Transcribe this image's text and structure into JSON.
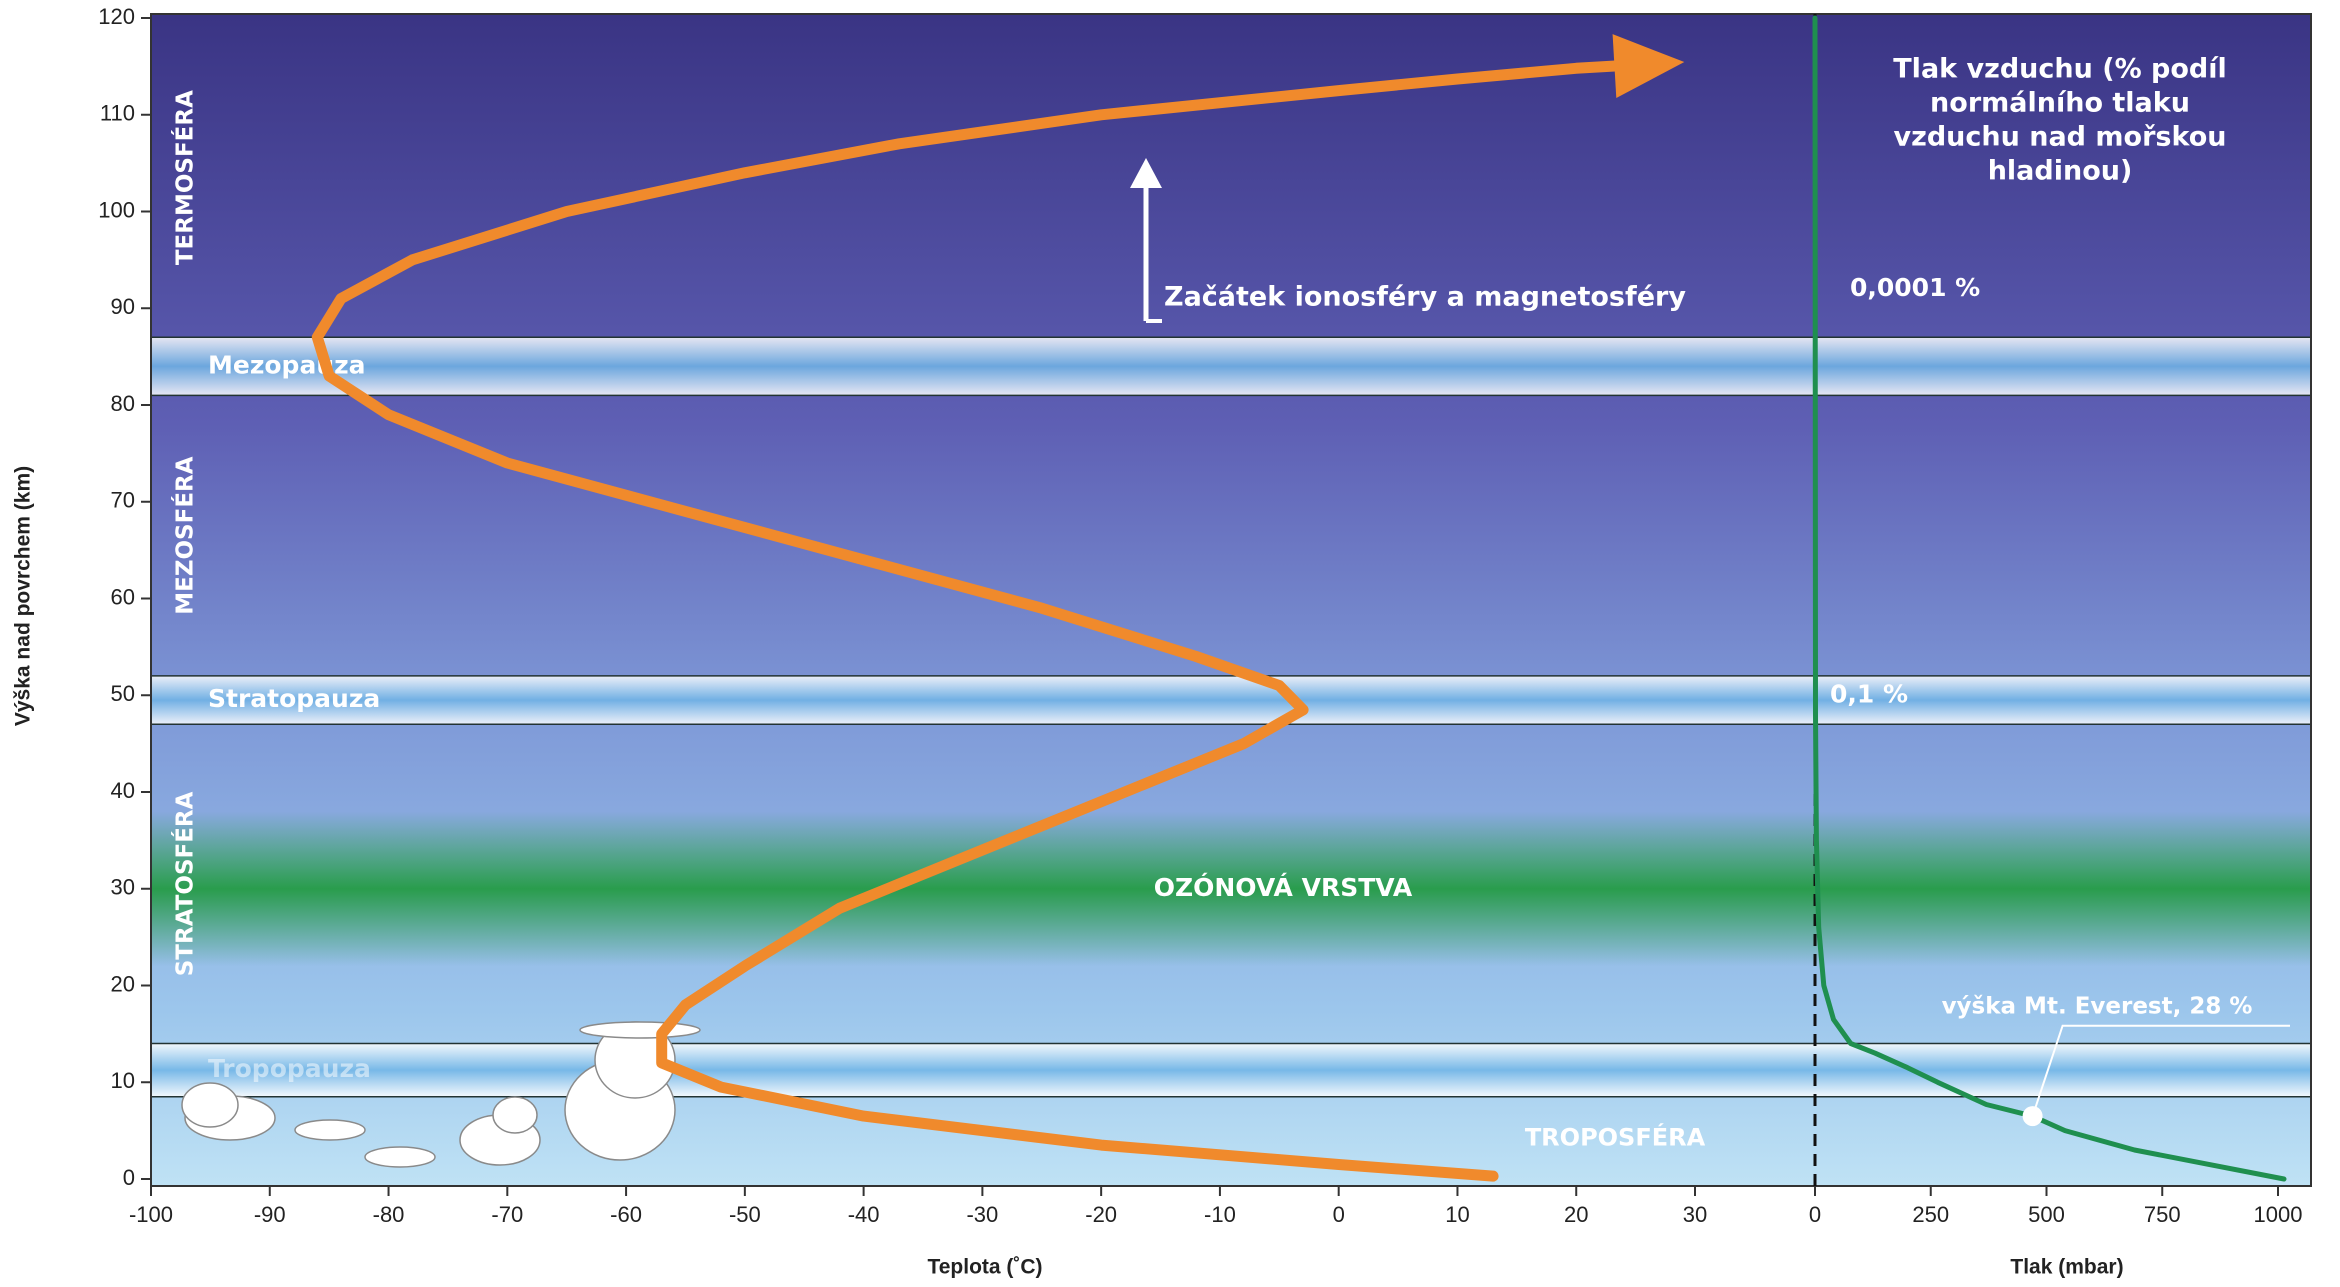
{
  "chart_data": {
    "type": "line",
    "ylabel": "Výška nad povrchem (km)",
    "xlabel": "Teplota (˚C)",
    "x2label": "Tlak (mbar)",
    "ylim": [
      0,
      120
    ],
    "yticks": [
      0,
      10,
      20,
      30,
      40,
      50,
      60,
      70,
      80,
      90,
      100,
      110,
      120
    ],
    "xlim": [
      -100,
      30
    ],
    "xticks": [
      -100,
      -90,
      -80,
      -70,
      -60,
      -50,
      -40,
      -30,
      -20,
      -10,
      0,
      10,
      20,
      30
    ],
    "x2lim": [
      0,
      1000
    ],
    "x2ticks": [
      0,
      250,
      500,
      750,
      1000
    ],
    "series": [
      {
        "color": "#f08a2c",
        "x": [
          13,
          0,
          -20,
          -40,
          -52,
          -57,
          -57,
          -55,
          -50,
          -42,
          -30,
          -18,
          -8,
          -3,
          -5,
          -12,
          -25,
          -40,
          -55,
          -70,
          -80,
          -85,
          -86,
          -84,
          -78,
          -65,
          -50,
          -37,
          -20,
          0,
          10,
          20,
          27
        ],
        "values": [
          0.3,
          1.5,
          3.5,
          6.5,
          9.5,
          12,
          15,
          18,
          22,
          28,
          34,
          40,
          45,
          48.5,
          51,
          54,
          59,
          64,
          69,
          74,
          79,
          83,
          87,
          91,
          95,
          100,
          104,
          107,
          110,
          112.5,
          113.7,
          114.8,
          115.3
        ]
      },
      {
        "color": "#1f8f4f",
        "axis": "x2",
        "x": [
          1013,
          690,
          540,
          470,
          370,
          265,
          200,
          130,
          77,
          40,
          19,
          8,
          3,
          1,
          0
        ],
        "values": [
          0,
          3,
          5,
          6.5,
          7.7,
          10,
          11.5,
          13,
          14,
          16.5,
          20,
          26,
          35,
          48,
          120
        ]
      }
    ],
    "layers": [
      {
        "label": "TERMOSFÉRA",
        "range": [
          87,
          120
        ]
      },
      {
        "label": "MEZOSFÉRA",
        "range": [
          52,
          81
        ]
      },
      {
        "label": "STRATOSFÉRA",
        "range": [
          14,
          47
        ]
      }
    ],
    "pauses": [
      {
        "label": "Mezopauza",
        "range": [
          81,
          87
        ]
      },
      {
        "label": "Stratopauza",
        "range": [
          47,
          52
        ]
      },
      {
        "label": "Tropopauza",
        "range": [
          8.5,
          14
        ]
      }
    ],
    "ozone": {
      "label": "OZÓNOVÁ VRSTVA",
      "range": [
        22,
        38
      ]
    },
    "troposphere": "TROPOSFÉRA",
    "ionosphere": "Začátek ionosféry a magnetosféry",
    "pressure_title": [
      "Tlak vzduchu (% podíl",
      "normálního tlaku",
      "vzduchu nad mořskou",
      "hladinou)"
    ],
    "pressure_labels": [
      "0,0001 %",
      "0,1 %"
    ],
    "everest": {
      "label": "výška Mt. Everest, 28 %",
      "x": 470,
      "values": 6.5
    }
  }
}
